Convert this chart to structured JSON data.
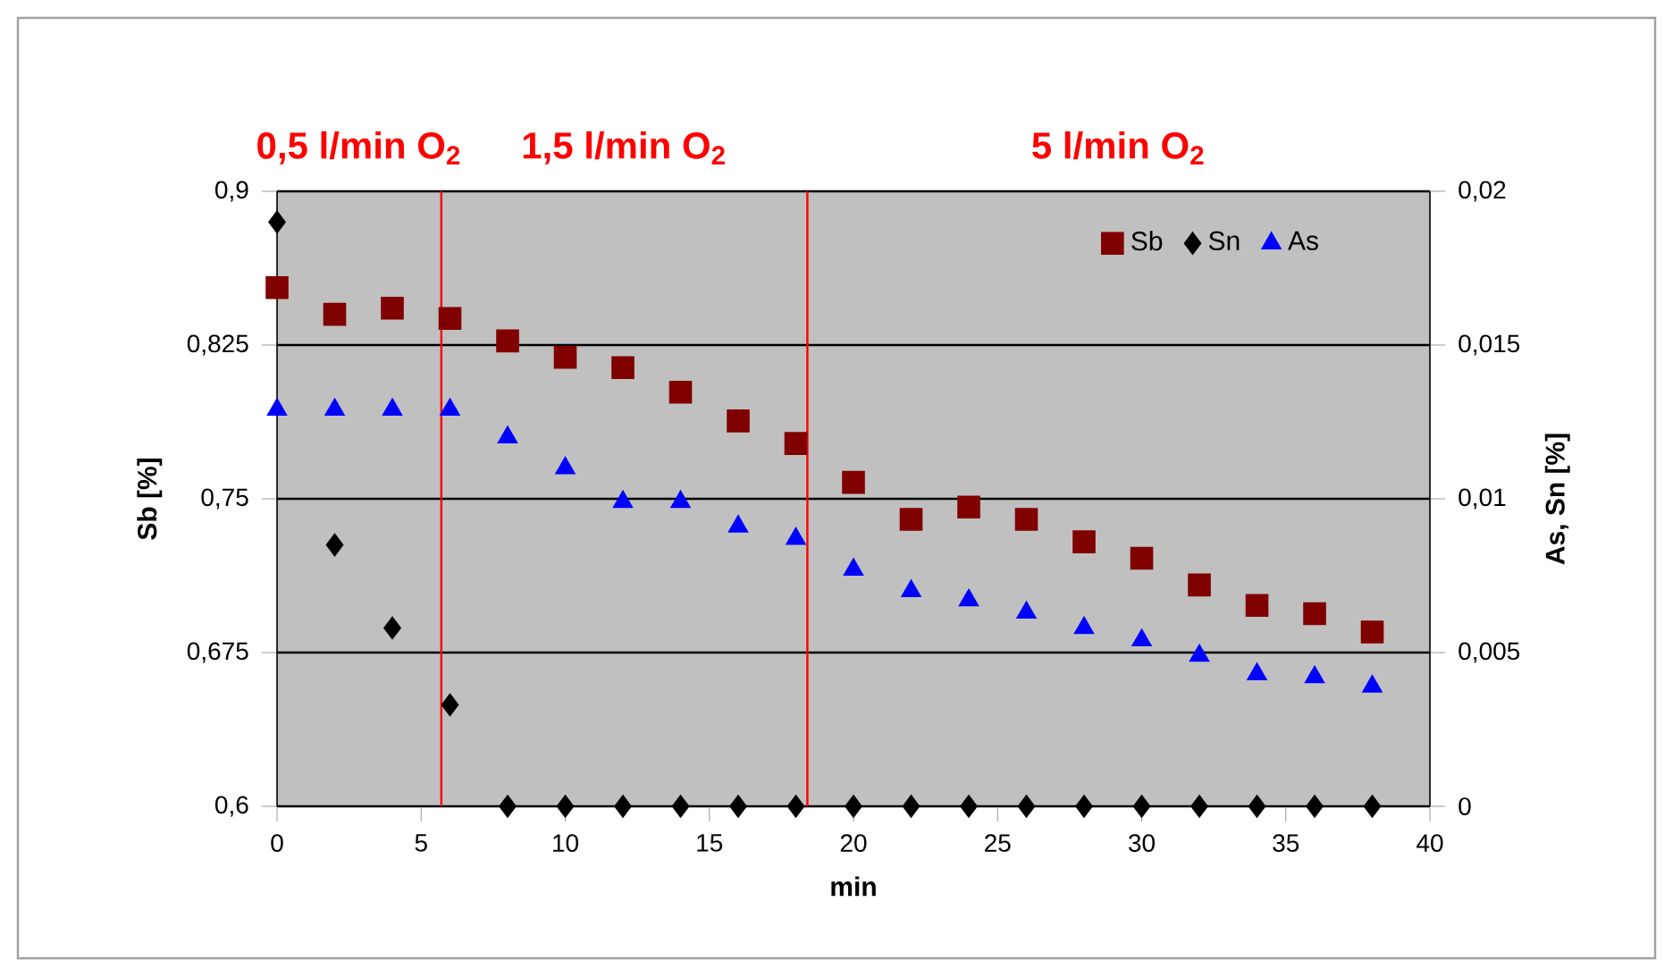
{
  "chart_data": {
    "type": "scatter",
    "xlabel": "min",
    "ylabel": "Sb [%]",
    "y2label": "As, Sn [%]",
    "x": [
      0,
      2,
      4,
      6,
      8,
      10,
      12,
      14,
      16,
      18,
      20,
      22,
      24,
      26,
      28,
      30,
      32,
      34,
      36,
      38
    ],
    "series": [
      {
        "name": "Sb",
        "color": "#800000",
        "marker": "square",
        "values": [
          0.853,
          0.84,
          0.843,
          0.838,
          0.827,
          0.819,
          0.814,
          0.802,
          0.788,
          0.777,
          0.758,
          0.74,
          0.746,
          0.74,
          0.729,
          0.721,
          0.708,
          0.698,
          0.694,
          0.685
        ]
      },
      {
        "name": "Sn",
        "color": "#000000",
        "marker": "diamond",
        "axis": "y2",
        "values": [
          0.019,
          0.0085,
          0.0058,
          0.0033,
          0,
          0,
          0,
          0,
          0,
          0,
          0,
          0,
          0,
          0,
          0,
          0,
          0,
          0,
          0,
          0
        ]
      },
      {
        "name": "As",
        "color": "#0000ff",
        "marker": "triangle",
        "axis": "y2",
        "values": [
          0.0129,
          0.0129,
          0.0129,
          0.0129,
          0.012,
          0.011,
          0.0099,
          0.0099,
          0.0091,
          0.0087,
          0.0077,
          0.007,
          0.0067,
          0.0063,
          0.0058,
          0.0054,
          0.0049,
          0.0043,
          0.0042,
          0.0039
        ]
      }
    ],
    "xlim": [
      0,
      40
    ],
    "xticks": [
      0,
      5,
      10,
      15,
      20,
      25,
      30,
      35,
      40
    ],
    "ylim": [
      0.6,
      0.9
    ],
    "yticks": [
      {
        "value": 0.6,
        "label": "0,6"
      },
      {
        "value": 0.675,
        "label": "0,675"
      },
      {
        "value": 0.75,
        "label": "0,75"
      },
      {
        "value": 0.825,
        "label": "0,825"
      },
      {
        "value": 0.9,
        "label": "0,9"
      }
    ],
    "y2lim": [
      0,
      0.02
    ],
    "y2ticks": [
      0,
      {
        "value": 0.005,
        "label": "0,005"
      },
      {
        "value": 0.01,
        "label": "0,01"
      },
      {
        "value": 0.015,
        "label": "0,015"
      },
      {
        "value": 0.02,
        "label": "0,02"
      }
    ],
    "ref_lines": [
      {
        "axis": "x",
        "value": 5.7,
        "color": "#ff0000"
      },
      {
        "axis": "x",
        "value": 18.4,
        "color": "#ff0000"
      }
    ],
    "annotations": [
      "0,5 l/min O$_{2}$",
      "1,5 l/min O$_{2}$",
      "5 l/min O$_{2}$"
    ],
    "grid": "y",
    "legend": "top right"
  }
}
